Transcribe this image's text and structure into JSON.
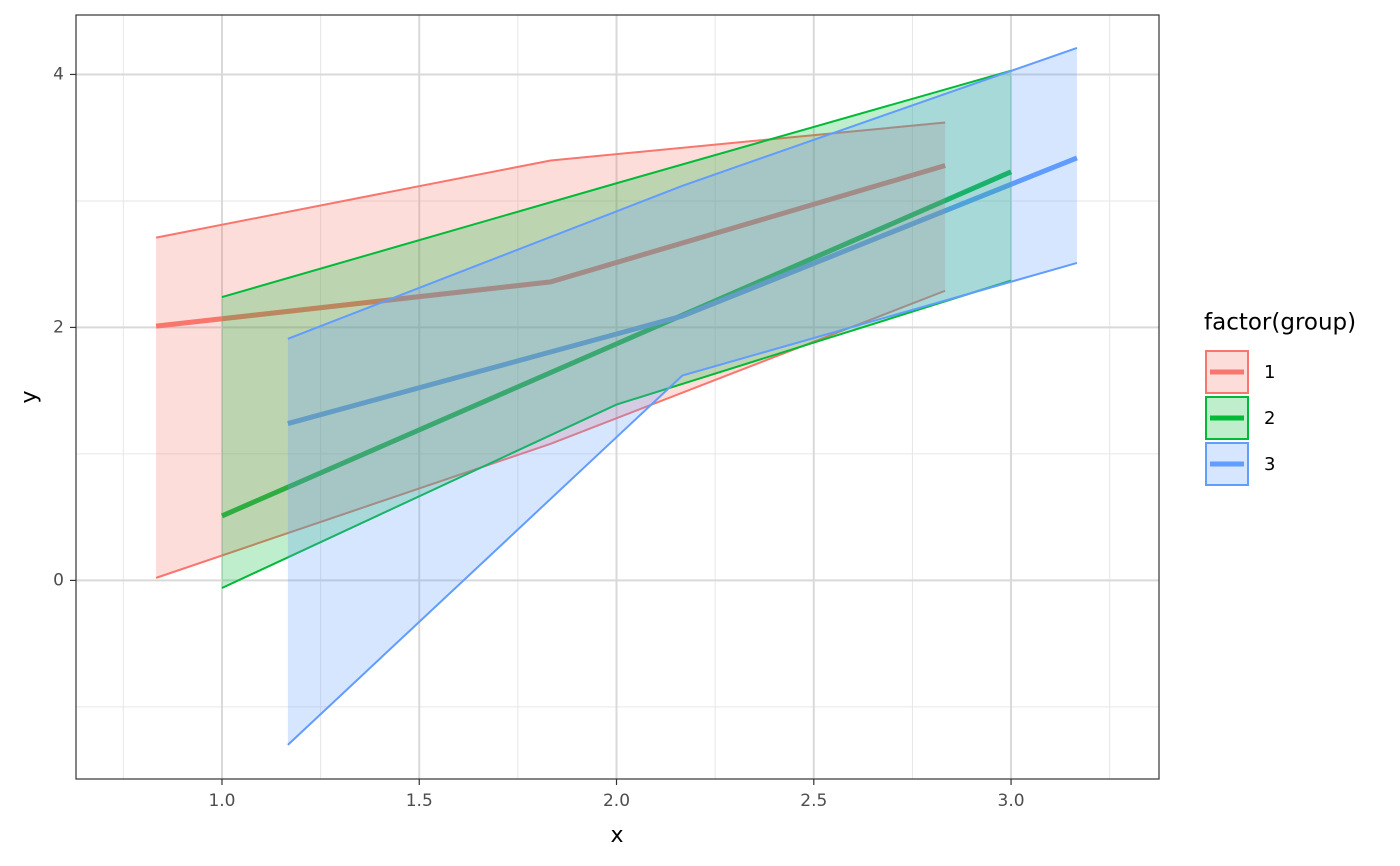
{
  "chart_data": {
    "type": "ribbon-line",
    "x_label": "x",
    "y_label": "y",
    "legend_title": "factor(group)",
    "xlim": [
      0.63,
      3.375
    ],
    "ylim": [
      -1.57,
      4.47
    ],
    "xticks": [
      {
        "value": 1,
        "label": "1.0"
      },
      1.5,
      {
        "value": 2,
        "label": "2.0"
      },
      2.5,
      {
        "value": 3,
        "label": "3.0"
      }
    ],
    "yticks": [
      0,
      2,
      4
    ],
    "xminor": [
      0.75,
      1.25,
      1.75,
      2.25,
      2.75,
      3.25
    ],
    "yminor": [
      -1,
      1,
      3
    ],
    "grid": true,
    "series": [
      {
        "name": "1",
        "color": "#F8766D",
        "x": [
          0.833,
          1.833,
          2.833
        ],
        "values": [
          2.01,
          2.36,
          3.28
        ],
        "lower": [
          0.02,
          1.08,
          2.29
        ],
        "upper": [
          2.71,
          3.32,
          3.62
        ]
      },
      {
        "name": "2",
        "color": "#00BA38",
        "x": [
          1,
          2,
          3
        ],
        "values": [
          0.51,
          1.87,
          3.23
        ],
        "lower": [
          -0.06,
          1.39,
          2.37
        ],
        "upper": [
          2.24,
          3.14,
          4.03
        ]
      },
      {
        "name": "3",
        "color": "#619CFF",
        "x": [
          1.167,
          2.167,
          3.167
        ],
        "values": [
          1.24,
          2.09,
          3.34
        ],
        "lower": [
          -1.3,
          1.62,
          2.51
        ],
        "upper": [
          1.91,
          3.12,
          4.21
        ]
      }
    ]
  }
}
